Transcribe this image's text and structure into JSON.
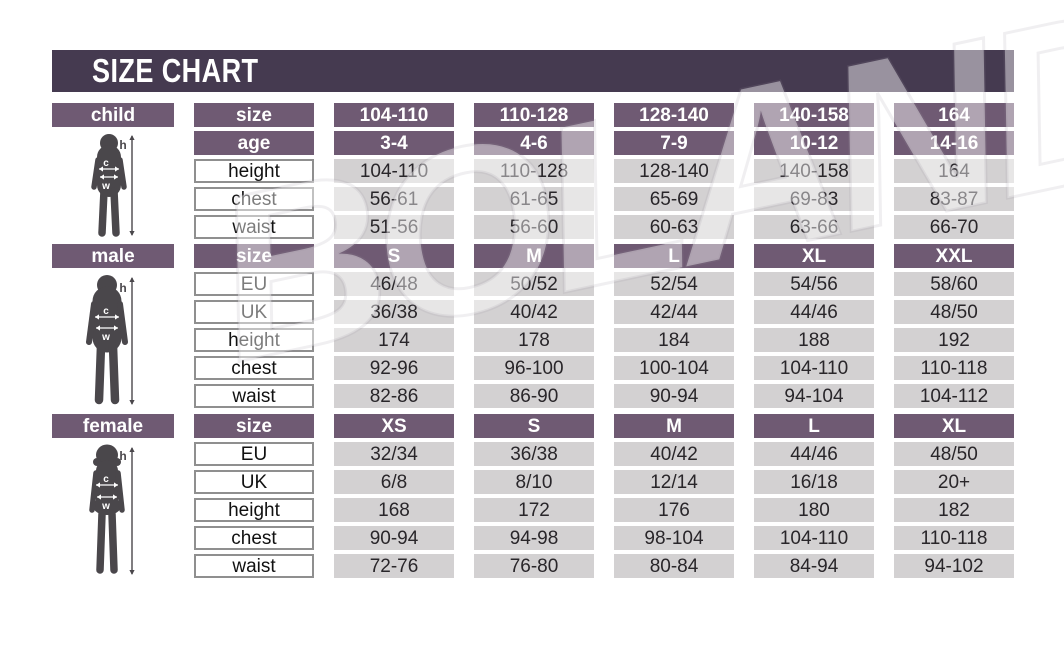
{
  "title": "SIZE CHART",
  "watermark": "BOLAND",
  "figure_labels": {
    "h": "h",
    "c": "c",
    "w": "w"
  },
  "colors": {
    "header_bg": "#453a50",
    "cell_purple": "#6f5a73",
    "cell_gray": "#d3d1d2",
    "label_border": "#8f8f8f",
    "silhouette": "#4a474b",
    "text_dark": "#29262a",
    "text_white": "#ffffff"
  },
  "sections": [
    {
      "label": "child",
      "rows": [
        {
          "label": "size",
          "style": "purple",
          "values": [
            "104-110",
            "110-128",
            "128-140",
            "140-158",
            "164"
          ]
        },
        {
          "label": "age",
          "style": "purple",
          "values": [
            "3-4",
            "4-6",
            "7-9",
            "10-12",
            "14-16"
          ]
        },
        {
          "label": "height",
          "style": "plain",
          "values": [
            "104-110",
            "110-128",
            "128-140",
            "140-158",
            "164"
          ]
        },
        {
          "label": "chest",
          "style": "plain",
          "values": [
            "56-61",
            "61-65",
            "65-69",
            "69-83",
            "83-87"
          ]
        },
        {
          "label": "waist",
          "style": "plain",
          "values": [
            "51-56",
            "56-60",
            "60-63",
            "63-66",
            "66-70"
          ]
        }
      ]
    },
    {
      "label": "male",
      "rows": [
        {
          "label": "size",
          "style": "purple",
          "values": [
            "S",
            "M",
            "L",
            "XL",
            "XXL"
          ]
        },
        {
          "label": "EU",
          "style": "plain",
          "values": [
            "46/48",
            "50/52",
            "52/54",
            "54/56",
            "58/60"
          ]
        },
        {
          "label": "UK",
          "style": "plain",
          "values": [
            "36/38",
            "40/42",
            "42/44",
            "44/46",
            "48/50"
          ]
        },
        {
          "label": "height",
          "style": "plain",
          "values": [
            "174",
            "178",
            "184",
            "188",
            "192"
          ]
        },
        {
          "label": "chest",
          "style": "plain",
          "values": [
            "92-96",
            "96-100",
            "100-104",
            "104-110",
            "110-118"
          ]
        },
        {
          "label": "waist",
          "style": "plain",
          "values": [
            "82-86",
            "86-90",
            "90-94",
            "94-104",
            "104-112"
          ]
        }
      ]
    },
    {
      "label": "female",
      "rows": [
        {
          "label": "size",
          "style": "purple",
          "values": [
            "XS",
            "S",
            "M",
            "L",
            "XL"
          ]
        },
        {
          "label": "EU",
          "style": "plain",
          "values": [
            "32/34",
            "36/38",
            "40/42",
            "44/46",
            "48/50"
          ]
        },
        {
          "label": "UK",
          "style": "plain",
          "values": [
            "6/8",
            "8/10",
            "12/14",
            "16/18",
            "20+"
          ]
        },
        {
          "label": "height",
          "style": "plain",
          "values": [
            "168",
            "172",
            "176",
            "180",
            "182"
          ]
        },
        {
          "label": "chest",
          "style": "plain",
          "values": [
            "90-94",
            "94-98",
            "98-104",
            "104-110",
            "110-118"
          ]
        },
        {
          "label": "waist",
          "style": "plain",
          "values": [
            "72-76",
            "76-80",
            "80-84",
            "84-94",
            "94-102"
          ]
        }
      ]
    }
  ]
}
